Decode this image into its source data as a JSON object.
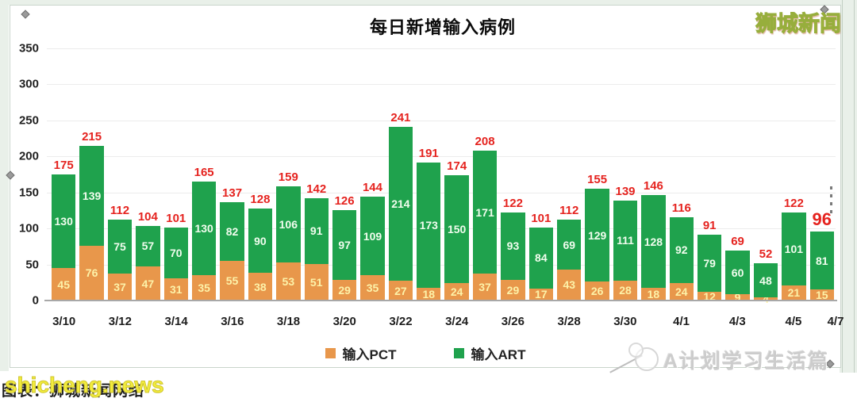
{
  "watermarks": {
    "top_right": "狮城新闻",
    "bottom_left_yellow": "shicheng.news",
    "bottom_left_black": "图表：狮城新闻网络",
    "bottom_right": "A计划学习生活篇"
  },
  "colors": {
    "bar_orange": "#e8974b",
    "bar_green": "#1fa24d",
    "total_label_red": "#e5231f",
    "orange_value_text": "#fdf2a9",
    "green_value_text": "#f1fdee",
    "gridline": "#ececec",
    "axis_line": "#a8a8a8"
  },
  "chart_data": {
    "type": "bar",
    "stacked": true,
    "title": "每日新增输入病例",
    "categories": [
      "3/10",
      "3/11",
      "3/12",
      "3/13",
      "3/14",
      "3/15",
      "3/16",
      "3/17",
      "3/18",
      "3/19",
      "3/20",
      "3/21",
      "3/22",
      "3/23",
      "3/24",
      "3/25",
      "3/26",
      "3/27",
      "3/28",
      "3/29",
      "3/30",
      "3/31",
      "4/1",
      "4/2",
      "4/3",
      "4/4",
      "4/5",
      "4/6"
    ],
    "x_tick_labels": [
      "3/10",
      "3/12",
      "3/14",
      "3/16",
      "3/18",
      "3/20",
      "3/22",
      "3/24",
      "3/26",
      "3/28",
      "3/30",
      "4/1",
      "4/3",
      "4/5",
      "4/7"
    ],
    "series": [
      {
        "name": "输入PCT",
        "color": "#e8974b",
        "values": [
          45,
          76,
          37,
          47,
          31,
          35,
          55,
          38,
          53,
          51,
          29,
          35,
          27,
          18,
          24,
          37,
          29,
          17,
          43,
          26,
          28,
          18,
          24,
          12,
          9,
          4,
          21,
          15
        ]
      },
      {
        "name": "输入ART",
        "color": "#1fa24d",
        "values": [
          130,
          139,
          75,
          57,
          70,
          130,
          82,
          90,
          106,
          91,
          97,
          109,
          214,
          173,
          150,
          171,
          93,
          84,
          69,
          129,
          111,
          128,
          92,
          79,
          60,
          48,
          101,
          81
        ]
      }
    ],
    "totals": [
      175,
      215,
      112,
      104,
      101,
      165,
      137,
      128,
      159,
      142,
      126,
      144,
      241,
      191,
      174,
      208,
      122,
      101,
      112,
      155,
      139,
      146,
      116,
      91,
      69,
      52,
      122,
      96
    ],
    "ylim": [
      0,
      350
    ],
    "y_ticks": [
      0,
      50,
      100,
      150,
      200,
      250,
      300,
      350
    ],
    "grid": true,
    "legend_position": "bottom"
  }
}
